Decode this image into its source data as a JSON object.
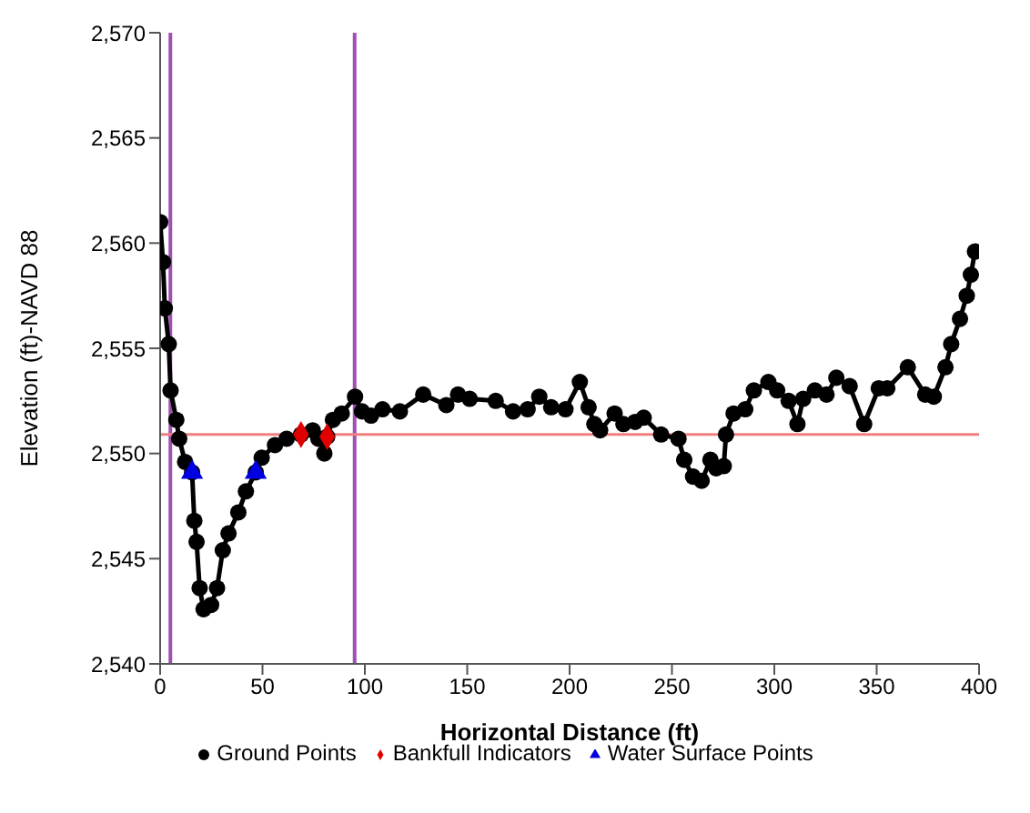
{
  "chart_data": {
    "type": "line",
    "xlabel": "Horizontal Distance (ft)",
    "ylabel": "Elevation (ft)-NAVD 88",
    "xlim": [
      0,
      400
    ],
    "xticks": [
      0,
      50,
      100,
      150,
      200,
      250,
      300,
      350,
      400
    ],
    "ylim": [
      2540,
      2570
    ],
    "yticks": [
      {
        "value": 2540,
        "label": "2,540"
      },
      {
        "value": 2545,
        "label": "2,545"
      },
      {
        "value": 2550,
        "label": "2,550"
      },
      {
        "value": 2555,
        "label": "2,555"
      },
      {
        "value": 2560,
        "label": "2,560"
      },
      {
        "value": 2565,
        "label": "2,565"
      },
      {
        "value": 2570,
        "label": "2,570"
      }
    ],
    "grid": false,
    "legend": "bottom",
    "series": [
      {
        "name": "Ground Points",
        "marker": "circle",
        "color": "#000000",
        "x": [
          0,
          1.4,
          2.3,
          4.2,
          5.1,
          7.9,
          9.3,
          12.2,
          15.6,
          16.7,
          17.8,
          19.3,
          21.2,
          24.9,
          27.8,
          30.6,
          33.4,
          38.2,
          41.9,
          46.7,
          49.6,
          56.1,
          61.8,
          68.8,
          74.5,
          77.3,
          80.2,
          81.6,
          84.4,
          88.7,
          95.2,
          98.6,
          103,
          108.6,
          117.1,
          128.5,
          139.8,
          145.5,
          151.2,
          163.9,
          172.4,
          179.5,
          185.2,
          191,
          198,
          205,
          209.3,
          212.1,
          214.9,
          222,
          226.3,
          232,
          236.2,
          244.7,
          253.2,
          256,
          260.3,
          264.5,
          268.8,
          271.6,
          275.3,
          276.4,
          280.1,
          285.8,
          290,
          297.1,
          301.4,
          307,
          311.3,
          314.1,
          319.8,
          325.5,
          330.3,
          336.8,
          343.9,
          351,
          355.2,
          365.2,
          373.7,
          377.9,
          383.6,
          386.4,
          390.7,
          394,
          396,
          398
        ],
        "values": [
          2561,
          2559.1,
          2556.9,
          2555.2,
          2553,
          2551.6,
          2550.7,
          2549.6,
          2549.1,
          2546.8,
          2545.8,
          2543.6,
          2542.6,
          2542.8,
          2543.6,
          2545.4,
          2546.2,
          2547.2,
          2548.2,
          2549.1,
          2549.8,
          2550.4,
          2550.7,
          2550.9,
          2551.1,
          2550.7,
          2550,
          2550.8,
          2551.6,
          2551.9,
          2552.7,
          2552,
          2551.8,
          2552.1,
          2552,
          2552.8,
          2552.3,
          2552.8,
          2552.6,
          2552.5,
          2552,
          2552.1,
          2552.7,
          2552.2,
          2552.1,
          2553.4,
          2552.2,
          2551.4,
          2551.1,
          2551.9,
          2551.4,
          2551.5,
          2551.7,
          2550.9,
          2550.7,
          2549.7,
          2548.9,
          2548.7,
          2549.7,
          2549.3,
          2549.4,
          2550.9,
          2551.9,
          2552.1,
          2553,
          2553.4,
          2553,
          2552.5,
          2551.4,
          2552.6,
          2553,
          2552.8,
          2553.6,
          2553.2,
          2551.4,
          2553.1,
          2553.1,
          2554.1,
          2552.8,
          2552.7,
          2554.1,
          2555.2,
          2556.4,
          2557.5,
          2558.5,
          2559.6
        ]
      },
      {
        "name": "Bankfull Indicators",
        "type": "scatter",
        "marker": "diamond",
        "color": "#e00000",
        "x": [
          68.8,
          81.6
        ],
        "values": [
          2550.9,
          2550.8
        ]
      },
      {
        "name": "Water Surface Points",
        "type": "scatter",
        "marker": "triangle",
        "color": "#0000e0",
        "x": [
          15.6,
          46.7
        ],
        "values": [
          2549.1,
          2549.1
        ]
      }
    ],
    "ref_lines": [
      {
        "axis": "x",
        "value": 5,
        "color": "#a050b0"
      },
      {
        "axis": "x",
        "value": 95,
        "color": "#a050b0"
      },
      {
        "axis": "y",
        "value": 2550.9,
        "color": "#f08080"
      }
    ]
  }
}
